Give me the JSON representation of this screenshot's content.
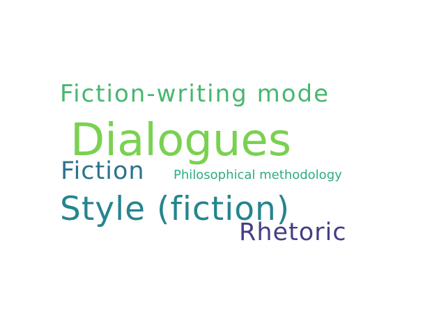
{
  "words": [
    {
      "text": "Fiction-writing mode",
      "color": "#47b76f"
    },
    {
      "text": "Dialogues",
      "color": "#7ad151"
    },
    {
      "text": "Fiction",
      "color": "#2c728e"
    },
    {
      "text": "Philosophical methodology",
      "color": "#2fab81"
    },
    {
      "text": "Style (fiction)",
      "color": "#25858e"
    },
    {
      "text": "Rhetoric",
      "color": "#433e85"
    }
  ]
}
